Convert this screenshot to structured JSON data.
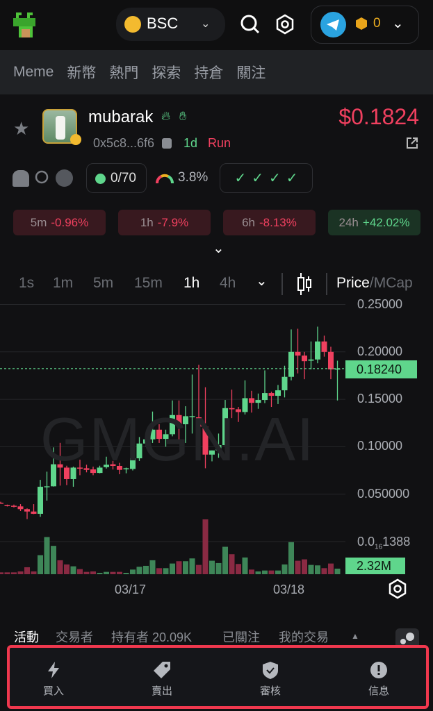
{
  "header": {
    "chain": "BSC",
    "wallet_balance": "0"
  },
  "nav": {
    "items": [
      "Meme",
      "新幣",
      "熱門",
      "探索",
      "持倉",
      "關注"
    ]
  },
  "token": {
    "name": "mubarak",
    "address": "0x5c8...6f6",
    "age": "1d",
    "tag": "Run",
    "price": "$0.1824"
  },
  "stats": {
    "snipers": "0/70",
    "top10": "3.8%"
  },
  "changes": [
    {
      "period": "5m",
      "value": "-0.96%",
      "dir": "neg"
    },
    {
      "period": "1h",
      "value": "-7.9%",
      "dir": "neg"
    },
    {
      "period": "6h",
      "value": "-8.13%",
      "dir": "neg"
    },
    {
      "period": "24h",
      "value": "+42.02%",
      "dir": "pos"
    }
  ],
  "timeframes": [
    "1s",
    "1m",
    "5m",
    "15m",
    "1h",
    "4h"
  ],
  "active_timeframe": "1h",
  "mode": {
    "price": "Price",
    "sep": "/",
    "mcap": "MCap"
  },
  "colors": {
    "up": "#5fd68c",
    "down": "#f0405f",
    "vol_up": "#3e8658",
    "vol_down": "#8a2a43",
    "accent": "#f0384e"
  },
  "chart_data": {
    "type": "candlestick",
    "watermark": "GMGN.AI",
    "ylim": [
      0,
      0.25
    ],
    "y_ticks": [
      "0.25000",
      "0.20000",
      "0.15000",
      "0.10000",
      "0.050000"
    ],
    "y_tick_values": [
      0.25,
      0.2,
      0.15,
      0.1,
      0.05
    ],
    "bottom_tick": {
      "prefix": "0.0",
      "sub": "16",
      "suffix": "1388"
    },
    "current_price": "0.18240",
    "current_price_value": 0.1824,
    "current_volume": "2.32M",
    "x_ticks": [
      {
        "label": "03/17",
        "index": 20
      },
      {
        "label": "03/18",
        "index": 44
      }
    ],
    "ohlc": [
      [
        0.041,
        0.042,
        0.04,
        0.04
      ],
      [
        0.0385,
        0.039,
        0.037,
        0.0383
      ],
      [
        0.0378,
        0.039,
        0.036,
        0.0376
      ],
      [
        0.0371,
        0.0395,
        0.0322,
        0.0342
      ],
      [
        0.0342,
        0.035,
        0.0237,
        0.0317
      ],
      [
        0.0317,
        0.0395,
        0.029,
        0.0293
      ],
      [
        0.0293,
        0.0651,
        0.0261,
        0.0578
      ],
      [
        0.0578,
        0.0737,
        0.0432,
        0.0583
      ],
      [
        0.0583,
        0.0993,
        0.058,
        0.0815
      ],
      [
        0.0815,
        0.1041,
        0.059,
        0.078
      ],
      [
        0.078,
        0.08,
        0.0595,
        0.0659
      ],
      [
        0.0659,
        0.079,
        0.0578,
        0.078
      ],
      [
        0.078,
        0.0863,
        0.07,
        0.0773
      ],
      [
        0.0773,
        0.081,
        0.073,
        0.0756
      ],
      [
        0.0761,
        0.079,
        0.07,
        0.0724
      ],
      [
        0.0724,
        0.08,
        0.072,
        0.078
      ],
      [
        0.0785,
        0.0895,
        0.077,
        0.081
      ],
      [
        0.0815,
        0.085,
        0.076,
        0.0798
      ],
      [
        0.0798,
        0.083,
        0.071,
        0.0756
      ],
      [
        0.0766,
        0.078,
        0.072,
        0.0773
      ],
      [
        0.0766,
        0.09,
        0.075,
        0.0878
      ],
      [
        0.0878,
        0.1102,
        0.085,
        0.1034
      ],
      [
        0.1034,
        0.1102,
        0.1,
        0.1078
      ],
      [
        0.1078,
        0.1371,
        0.104,
        0.118
      ],
      [
        0.118,
        0.1237,
        0.104,
        0.1083
      ],
      [
        0.1083,
        0.118,
        0.1,
        0.1132
      ],
      [
        0.1132,
        0.1488,
        0.111,
        0.1334
      ],
      [
        0.1334,
        0.1488,
        0.104,
        0.1237
      ],
      [
        0.1237,
        0.1427,
        0.104,
        0.1322
      ],
      [
        0.1322,
        0.1761,
        0.1139,
        0.1322
      ],
      [
        0.131,
        0.1863,
        0.1151,
        0.1212
      ],
      [
        0.1212,
        0.1627,
        0.0773,
        0.0917
      ],
      [
        0.0917,
        0.0961,
        0.0846,
        0.0961
      ],
      [
        0.0961,
        0.1139,
        0.0883,
        0.1017
      ],
      [
        0.1017,
        0.1493,
        0.1,
        0.1407
      ],
      [
        0.1407,
        0.1602,
        0.1302,
        0.1395
      ],
      [
        0.1395,
        0.142,
        0.1261,
        0.1366
      ],
      [
        0.1366,
        0.17,
        0.134,
        0.1512
      ],
      [
        0.1512,
        0.159,
        0.136,
        0.1463
      ],
      [
        0.1463,
        0.1561,
        0.14,
        0.1493
      ],
      [
        0.1493,
        0.1805,
        0.146,
        0.1566
      ],
      [
        0.1566,
        0.158,
        0.142,
        0.1537
      ],
      [
        0.1537,
        0.1651,
        0.145,
        0.1595
      ],
      [
        0.1595,
        0.1854,
        0.152,
        0.1737
      ],
      [
        0.1737,
        0.2237,
        0.17,
        0.2
      ],
      [
        0.2,
        0.2244,
        0.1773,
        0.1961
      ],
      [
        0.1961,
        0.2,
        0.1712,
        0.1902
      ],
      [
        0.1907,
        0.211,
        0.1815,
        0.192
      ],
      [
        0.192,
        0.2266,
        0.188,
        0.211
      ],
      [
        0.211,
        0.2171,
        0.195,
        0.2
      ],
      [
        0.2,
        0.2054,
        0.1712,
        0.1815
      ],
      [
        0.1815,
        0.1907,
        0.1488,
        0.1824
      ]
    ],
    "volume_relative": [
      8,
      8,
      8,
      12,
      30,
      12,
      82,
      160,
      122,
      60,
      42,
      34,
      22,
      10,
      12,
      6,
      10,
      10,
      10,
      6,
      20,
      32,
      36,
      60,
      26,
      26,
      46,
      56,
      56,
      68,
      40,
      236,
      58,
      48,
      118,
      86,
      44,
      72,
      20,
      12,
      16,
      16,
      16,
      42,
      138,
      58,
      64,
      40,
      38,
      26,
      46,
      24
    ]
  },
  "bottom_tabs": {
    "activity": "活動",
    "traders": "交易者",
    "holders": "持有者 20.09K",
    "following": "已關注",
    "my_trades": "我的交易"
  },
  "actions": [
    {
      "label": "買入",
      "icon": "lightning-icon"
    },
    {
      "label": "賣出",
      "icon": "tag-icon"
    },
    {
      "label": "審核",
      "icon": "shield-check-icon"
    },
    {
      "label": "信息",
      "icon": "info-icon"
    }
  ]
}
